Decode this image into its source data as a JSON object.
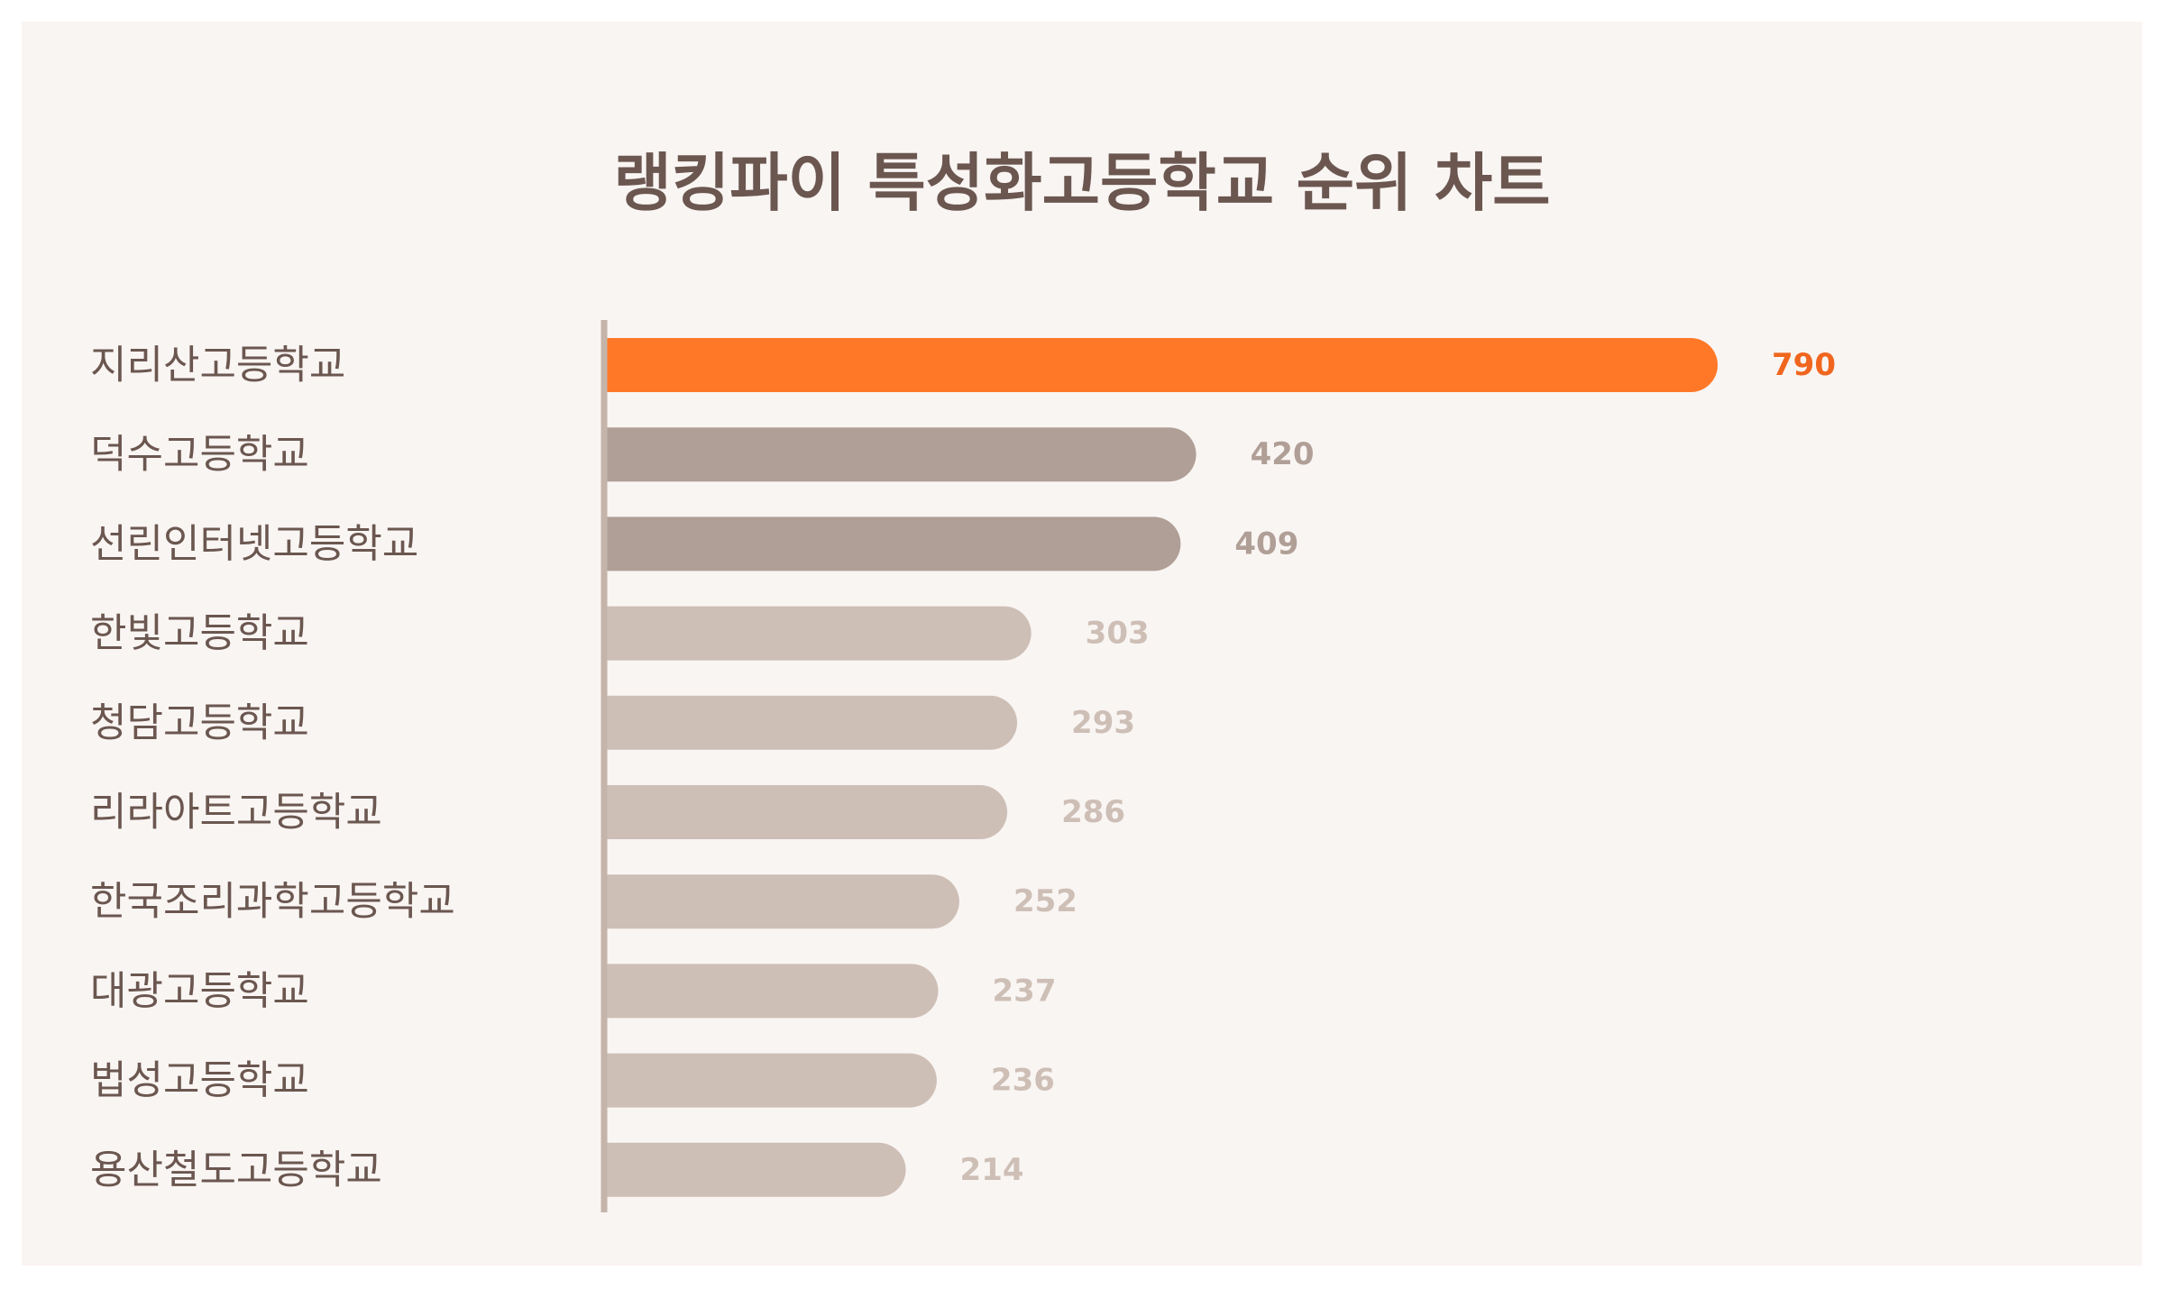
{
  "colors": {
    "highlight": "#ff7828",
    "highlight_label": "#f0661e",
    "secondary": "#b09f96",
    "tertiary": "#cebfb6",
    "title": "#6b5750",
    "axis": "#c4b4aa"
  },
  "chart_data": {
    "type": "bar",
    "orientation": "horizontal",
    "title": "랭킹파이 특성화고등학교 순위 차트",
    "xlabel": "",
    "ylabel": "",
    "xlim": [
      0,
      790
    ],
    "grid": false,
    "legend": "none",
    "categories": [
      "지리산고등학교",
      "덕수고등학교",
      "선린인터넷고등학교",
      "한빛고등학교",
      "청담고등학교",
      "리라아트고등학교",
      "한국조리과학고등학교",
      "대광고등학교",
      "법성고등학교",
      "용산철도고등학교"
    ],
    "values": [
      790,
      420,
      409,
      303,
      293,
      286,
      252,
      237,
      236,
      214
    ]
  }
}
